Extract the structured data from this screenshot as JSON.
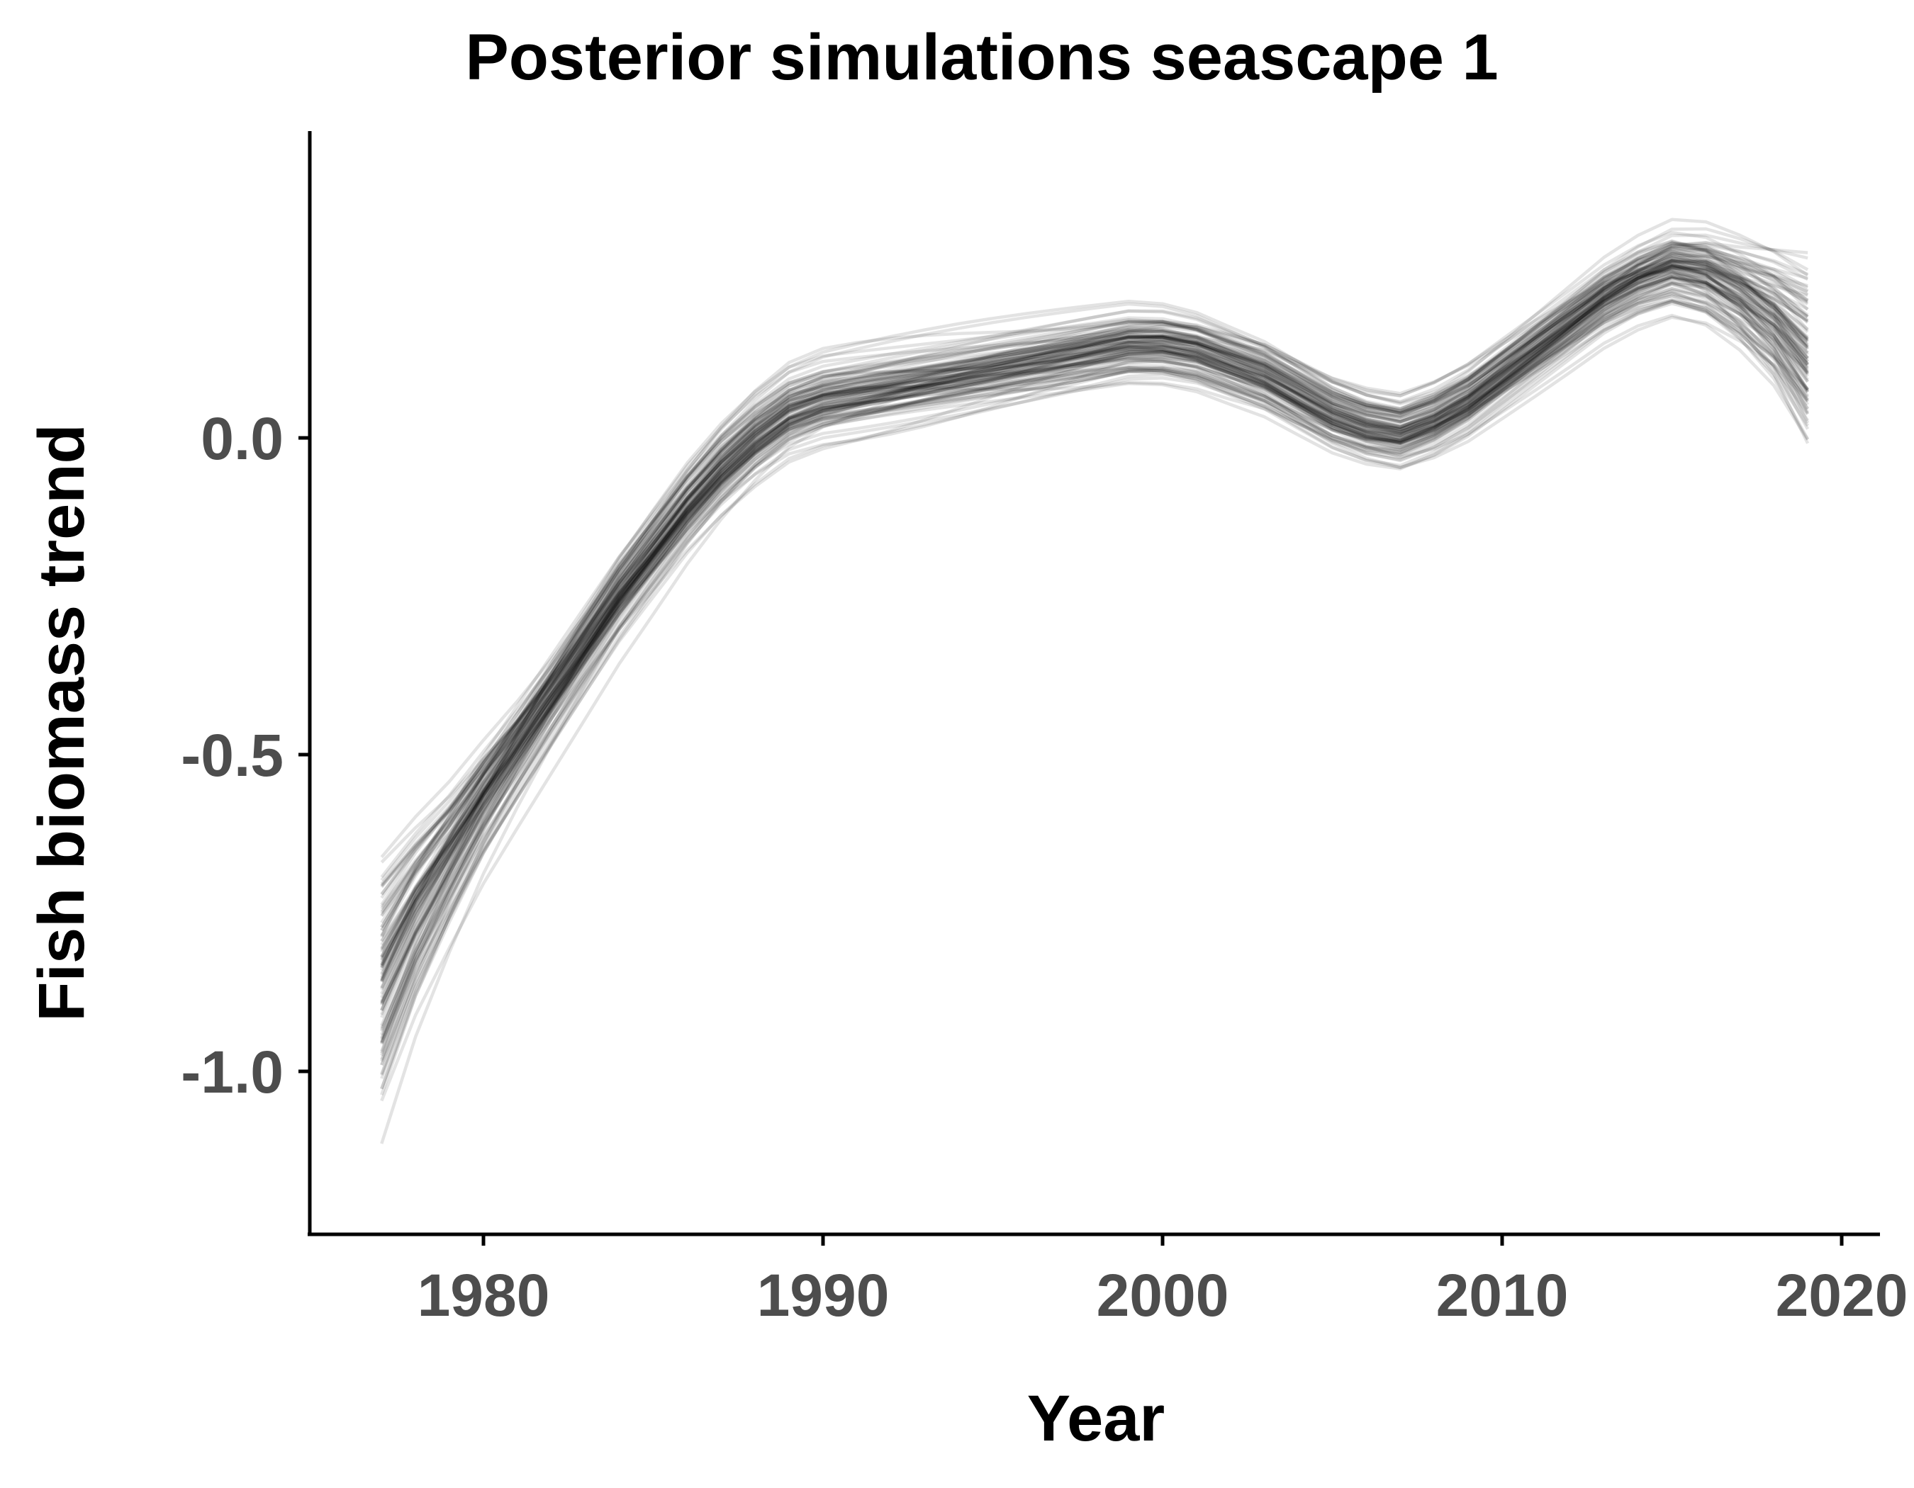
{
  "chart_data": {
    "type": "line",
    "title": "Posterior simulations seascape 1",
    "xlabel": "Year",
    "ylabel": "Fish biomass trend",
    "xlim": [
      1975,
      2021
    ],
    "ylim": [
      -1.25,
      0.48
    ],
    "x_ticks": [
      1980,
      1990,
      2000,
      2010,
      2020
    ],
    "x_tick_labels": [
      "1980",
      "1990",
      "2000",
      "2010",
      "2020"
    ],
    "y_ticks": [
      -1.0,
      -0.5,
      0.0
    ],
    "y_tick_labels": [
      "-1.0",
      "-0.5",
      "0.0"
    ],
    "grid": false,
    "legend": "none",
    "line_color": "#000000",
    "x": [
      1977,
      1978,
      1979,
      1980,
      1981,
      1982,
      1983,
      1984,
      1985,
      1986,
      1987,
      1988,
      1989,
      1990,
      1991,
      1992,
      1993,
      1994,
      1995,
      1996,
      1997,
      1998,
      1999,
      2000,
      2001,
      2002,
      2003,
      2004,
      2005,
      2006,
      2007,
      2008,
      2009,
      2010,
      2011,
      2012,
      2013,
      2014,
      2015,
      2016,
      2017,
      2018,
      2019
    ],
    "posterior_mean": [
      -0.86,
      -0.75,
      -0.66,
      -0.57,
      -0.49,
      -0.41,
      -0.33,
      -0.25,
      -0.18,
      -0.11,
      -0.05,
      0.0,
      0.04,
      0.06,
      0.07,
      0.08,
      0.09,
      0.1,
      0.11,
      0.12,
      0.13,
      0.14,
      0.15,
      0.15,
      0.14,
      0.12,
      0.1,
      0.07,
      0.04,
      0.02,
      0.01,
      0.03,
      0.06,
      0.1,
      0.14,
      0.18,
      0.22,
      0.25,
      0.27,
      0.26,
      0.23,
      0.19,
      0.13
    ],
    "n_simulations": 100
  }
}
